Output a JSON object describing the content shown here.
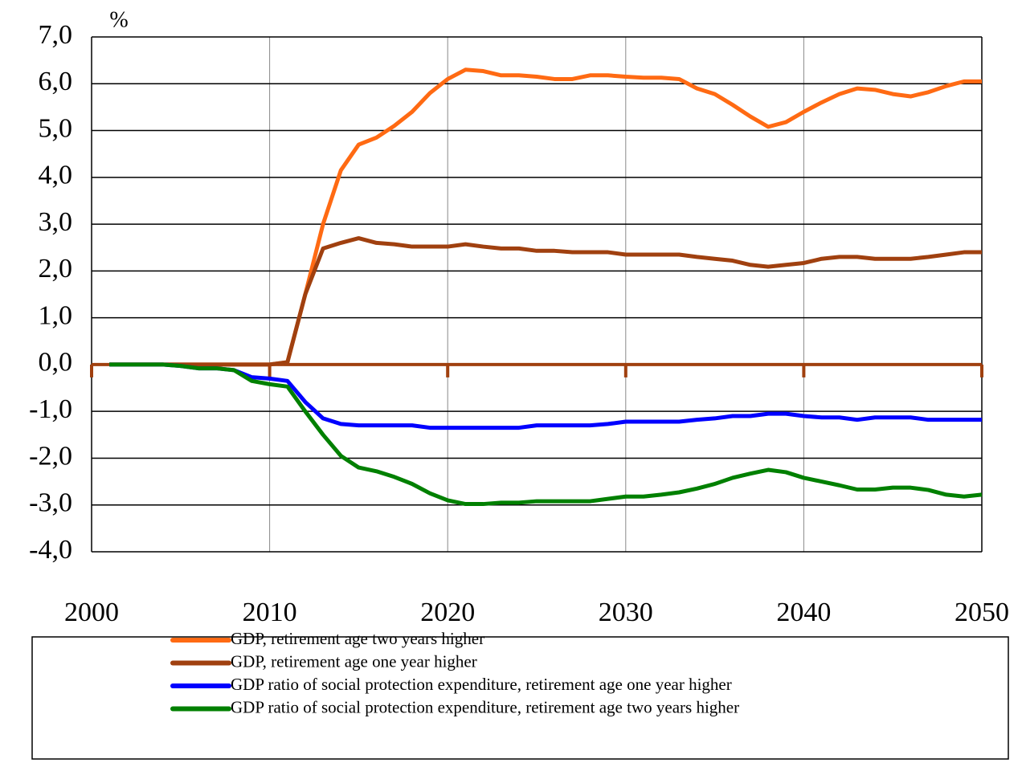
{
  "chart_data": {
    "type": "line",
    "y_label": "%",
    "x": [
      2001,
      2002,
      2003,
      2004,
      2005,
      2006,
      2007,
      2008,
      2009,
      2010,
      2011,
      2012,
      2013,
      2014,
      2015,
      2016,
      2017,
      2018,
      2019,
      2020,
      2021,
      2022,
      2023,
      2024,
      2025,
      2026,
      2027,
      2028,
      2029,
      2030,
      2031,
      2032,
      2033,
      2034,
      2035,
      2036,
      2037,
      2038,
      2039,
      2040,
      2041,
      2042,
      2043,
      2044,
      2045,
      2046,
      2047,
      2048,
      2049,
      2050
    ],
    "series": [
      {
        "name": "GDP, retirement age two years higher",
        "color": "#ff6a13",
        "values": [
          0,
          0,
          0,
          0,
          0,
          0,
          0,
          0,
          0,
          0,
          0.05,
          1.5,
          3.0,
          4.15,
          4.7,
          4.85,
          5.1,
          5.4,
          5.8,
          6.1,
          6.3,
          6.27,
          6.18,
          6.18,
          6.15,
          6.1,
          6.1,
          6.18,
          6.18,
          6.15,
          6.13,
          6.13,
          6.1,
          5.9,
          5.78,
          5.55,
          5.3,
          5.08,
          5.18,
          5.4,
          5.6,
          5.78,
          5.9,
          5.87,
          5.78,
          5.73,
          5.82,
          5.95,
          6.05,
          6.05
        ]
      },
      {
        "name": "GDP, retirement age one year higher",
        "color": "#a0400f",
        "values": [
          0,
          0,
          0,
          0,
          0,
          0,
          0,
          0,
          0,
          0,
          0.05,
          1.5,
          2.48,
          2.6,
          2.7,
          2.6,
          2.57,
          2.52,
          2.52,
          2.52,
          2.57,
          2.52,
          2.48,
          2.48,
          2.43,
          2.43,
          2.4,
          2.4,
          2.4,
          2.35,
          2.35,
          2.35,
          2.35,
          2.3,
          2.26,
          2.22,
          2.13,
          2.09,
          2.13,
          2.17,
          2.26,
          2.3,
          2.3,
          2.26,
          2.26,
          2.26,
          2.3,
          2.35,
          2.4,
          2.4
        ]
      },
      {
        "name": "GDP ratio of social protection expenditure, retirement age one year higher",
        "color": "#0000ff",
        "values": [
          0,
          0,
          0,
          0,
          -0.03,
          -0.08,
          -0.08,
          -0.12,
          -0.27,
          -0.3,
          -0.35,
          -0.8,
          -1.15,
          -1.27,
          -1.3,
          -1.3,
          -1.3,
          -1.3,
          -1.35,
          -1.35,
          -1.35,
          -1.35,
          -1.35,
          -1.35,
          -1.3,
          -1.3,
          -1.3,
          -1.3,
          -1.27,
          -1.22,
          -1.22,
          -1.22,
          -1.22,
          -1.18,
          -1.15,
          -1.1,
          -1.1,
          -1.05,
          -1.05,
          -1.1,
          -1.13,
          -1.13,
          -1.18,
          -1.13,
          -1.13,
          -1.13,
          -1.18,
          -1.18,
          -1.18,
          -1.18
        ]
      },
      {
        "name": "GDP ratio of social protection expenditure, retirement age two years higher",
        "color": "#008000",
        "values": [
          0,
          0,
          0,
          0,
          -0.03,
          -0.08,
          -0.08,
          -0.12,
          -0.35,
          -0.42,
          -0.47,
          -1.0,
          -1.5,
          -1.95,
          -2.2,
          -2.28,
          -2.4,
          -2.55,
          -2.75,
          -2.9,
          -2.98,
          -2.98,
          -2.95,
          -2.95,
          -2.92,
          -2.92,
          -2.92,
          -2.92,
          -2.87,
          -2.82,
          -2.82,
          -2.78,
          -2.73,
          -2.65,
          -2.55,
          -2.42,
          -2.33,
          -2.25,
          -2.3,
          -2.42,
          -2.5,
          -2.58,
          -2.67,
          -2.67,
          -2.63,
          -2.63,
          -2.68,
          -2.78,
          -2.82,
          -2.78
        ]
      }
    ],
    "xlim": [
      2000,
      2050
    ],
    "xticks": [
      2000,
      2010,
      2020,
      2030,
      2040,
      2050
    ],
    "ylim": [
      -4,
      7
    ],
    "yticks": [
      {
        "value": -4,
        "label": "-4,0"
      },
      {
        "value": -3,
        "label": "-3,0"
      },
      {
        "value": -2,
        "label": "-2,0"
      },
      {
        "value": -1,
        "label": "-1,0"
      },
      {
        "value": 0,
        "label": "0,0"
      },
      {
        "value": 1,
        "label": "1,0"
      },
      {
        "value": 2,
        "label": "2,0"
      },
      {
        "value": 3,
        "label": "3,0"
      },
      {
        "value": 4,
        "label": "4,0"
      },
      {
        "value": 5,
        "label": "5,0"
      },
      {
        "value": 6,
        "label": "6,0"
      },
      {
        "value": 7,
        "label": "7,0"
      }
    ],
    "grid": true,
    "axis_color": "#a0400f"
  }
}
